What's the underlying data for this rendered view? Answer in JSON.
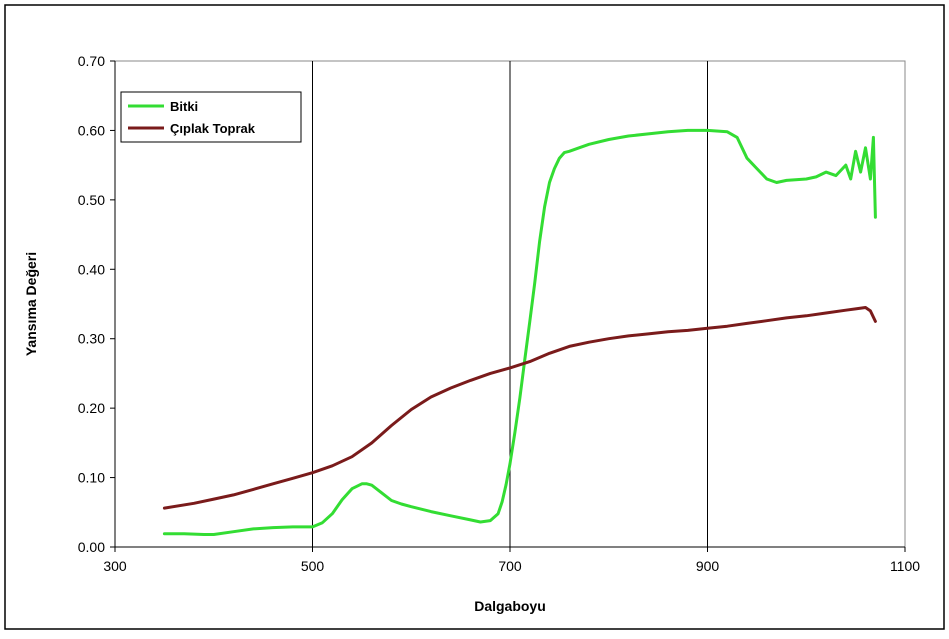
{
  "chart_data": {
    "type": "line",
    "title": "",
    "xlabel": "Dalgaboyu",
    "ylabel": "Yansıma Değeri",
    "xlim": [
      300,
      1100
    ],
    "ylim": [
      0,
      0.7
    ],
    "x_ticks": [
      "300",
      "500",
      "700",
      "900",
      "1100"
    ],
    "y_ticks": [
      "0.00",
      "0.10",
      "0.20",
      "0.30",
      "0.40",
      "0.50",
      "0.60",
      "0.70"
    ],
    "grid": "vertical lines at 500, 700, 900",
    "legend_position": "top-left",
    "series": [
      {
        "name": "Bitki",
        "color": "#33dd33",
        "x": [
          350,
          370,
          390,
          400,
          420,
          440,
          460,
          480,
          500,
          510,
          520,
          530,
          540,
          550,
          555,
          560,
          570,
          580,
          590,
          600,
          620,
          640,
          660,
          670,
          680,
          688,
          692,
          696,
          700,
          705,
          710,
          715,
          720,
          725,
          730,
          735,
          740,
          745,
          750,
          755,
          760,
          770,
          780,
          800,
          820,
          840,
          860,
          880,
          900,
          920,
          930,
          940,
          950,
          960,
          970,
          980,
          1000,
          1010,
          1020,
          1030,
          1040,
          1045,
          1050,
          1055,
          1060,
          1065,
          1068,
          1070
        ],
        "y": [
          0.019,
          0.019,
          0.018,
          0.018,
          0.022,
          0.026,
          0.028,
          0.029,
          0.029,
          0.035,
          0.048,
          0.068,
          0.084,
          0.091,
          0.091,
          0.089,
          0.078,
          0.067,
          0.062,
          0.058,
          0.051,
          0.045,
          0.039,
          0.036,
          0.038,
          0.048,
          0.065,
          0.09,
          0.12,
          0.165,
          0.215,
          0.27,
          0.325,
          0.38,
          0.44,
          0.49,
          0.525,
          0.545,
          0.56,
          0.568,
          0.57,
          0.575,
          0.58,
          0.587,
          0.592,
          0.595,
          0.598,
          0.6,
          0.6,
          0.598,
          0.59,
          0.56,
          0.545,
          0.53,
          0.525,
          0.528,
          0.53,
          0.533,
          0.54,
          0.535,
          0.55,
          0.53,
          0.57,
          0.54,
          0.575,
          0.53,
          0.59,
          0.475
        ]
      },
      {
        "name": "Çıplak Toprak",
        "color": "#7a1b1b",
        "x": [
          350,
          380,
          400,
          420,
          440,
          460,
          480,
          500,
          520,
          540,
          560,
          580,
          600,
          620,
          640,
          660,
          680,
          700,
          720,
          740,
          760,
          780,
          800,
          820,
          840,
          860,
          880,
          900,
          920,
          940,
          960,
          980,
          1000,
          1020,
          1040,
          1050,
          1060,
          1065,
          1070
        ],
        "y": [
          0.056,
          0.063,
          0.069,
          0.075,
          0.083,
          0.091,
          0.099,
          0.107,
          0.117,
          0.13,
          0.15,
          0.175,
          0.198,
          0.216,
          0.229,
          0.24,
          0.25,
          0.258,
          0.267,
          0.279,
          0.289,
          0.295,
          0.3,
          0.304,
          0.307,
          0.31,
          0.312,
          0.315,
          0.318,
          0.322,
          0.326,
          0.33,
          0.333,
          0.337,
          0.341,
          0.343,
          0.345,
          0.34,
          0.325
        ]
      }
    ]
  }
}
